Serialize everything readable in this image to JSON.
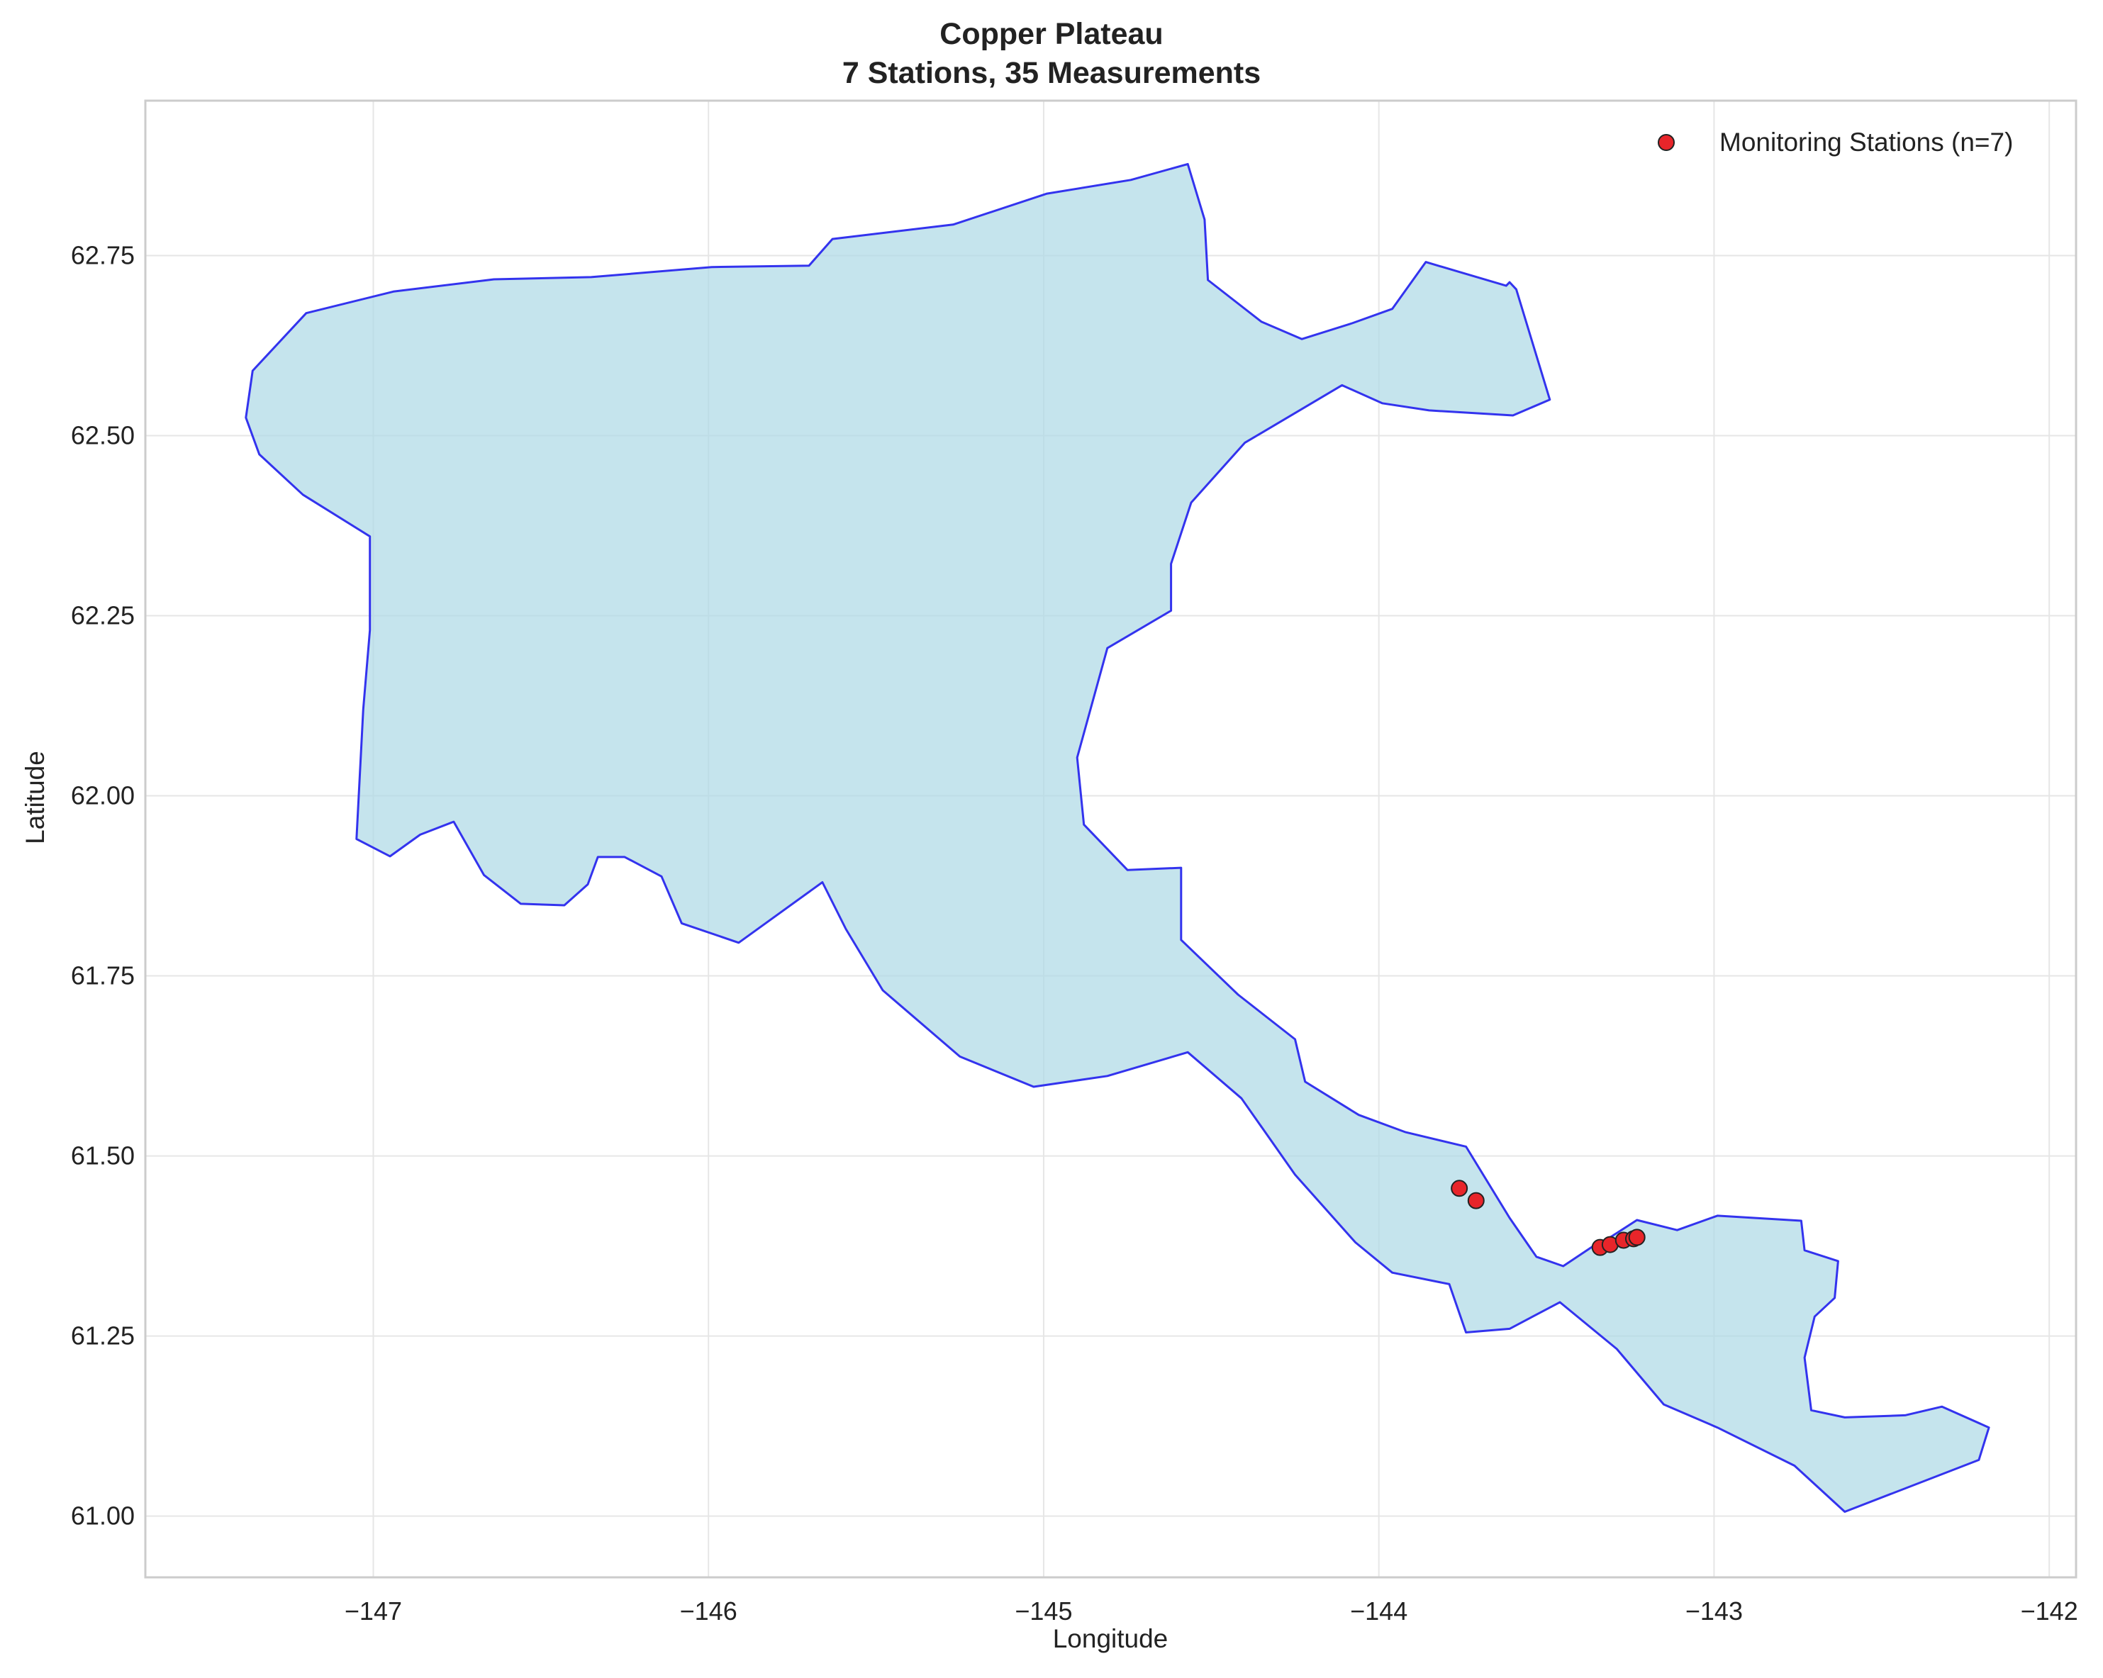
{
  "title": "Copper Plateau",
  "subtitle": "7 Stations, 35 Measurements",
  "xlabel": "Longitude",
  "ylabel": "Latitude",
  "legend": {
    "label": "Monitoring Stations (n=7)",
    "placement": "top-right"
  },
  "colors": {
    "region_fill": "#add8e6",
    "region_edge": "#3333ee",
    "station_fill": "#e8252a",
    "station_edge": "#222222",
    "frame": "#cccccc",
    "grid": "#e6e6e6"
  },
  "chart_data": {
    "type": "scatter",
    "xlim": [
      -147.68,
      -141.92
    ],
    "ylim": [
      60.915,
      62.965
    ],
    "x_ticks": [
      -147,
      -146,
      -145,
      -144,
      -143,
      -142
    ],
    "y_ticks": [
      61.0,
      61.25,
      61.5,
      61.75,
      62.0,
      62.25,
      62.5,
      62.75
    ],
    "x_tick_labels": [
      "−147",
      "−146",
      "−145",
      "−144",
      "−143",
      "−142"
    ],
    "y_tick_labels": [
      "61.00",
      "61.25",
      "61.50",
      "61.75",
      "62.00",
      "62.25",
      "62.50",
      "62.75"
    ],
    "grid": true,
    "stations": [
      {
        "lon": -143.76,
        "lat": 61.455
      },
      {
        "lon": -143.71,
        "lat": 61.438
      },
      {
        "lon": -143.34,
        "lat": 61.373
      },
      {
        "lon": -143.31,
        "lat": 61.377
      },
      {
        "lon": -143.27,
        "lat": 61.383
      },
      {
        "lon": -143.24,
        "lat": 61.385
      },
      {
        "lon": -143.23,
        "lat": 61.387
      }
    ],
    "region_outline": [
      [
        -147.38,
        62.525
      ],
      [
        -147.36,
        62.59
      ],
      [
        -147.2,
        62.67
      ],
      [
        -146.94,
        62.7
      ],
      [
        -146.64,
        62.717
      ],
      [
        -146.35,
        62.72
      ],
      [
        -145.99,
        62.734
      ],
      [
        -145.7,
        62.736
      ],
      [
        -145.63,
        62.773
      ],
      [
        -145.27,
        62.793
      ],
      [
        -144.99,
        62.836
      ],
      [
        -144.74,
        62.855
      ],
      [
        -144.57,
        62.877
      ],
      [
        -144.52,
        62.8
      ],
      [
        -144.51,
        62.716
      ],
      [
        -144.35,
        62.658
      ],
      [
        -144.23,
        62.634
      ],
      [
        -144.08,
        62.656
      ],
      [
        -143.96,
        62.676
      ],
      [
        -143.86,
        62.741
      ],
      [
        -143.62,
        62.708
      ],
      [
        -143.61,
        62.713
      ],
      [
        -143.59,
        62.703
      ],
      [
        -143.49,
        62.55
      ],
      [
        -143.6,
        62.528
      ],
      [
        -143.85,
        62.535
      ],
      [
        -143.99,
        62.545
      ],
      [
        -144.11,
        62.57
      ],
      [
        -144.4,
        62.49
      ],
      [
        -144.56,
        62.407
      ],
      [
        -144.62,
        62.322
      ],
      [
        -144.62,
        62.257
      ],
      [
        -144.81,
        62.205
      ],
      [
        -144.9,
        62.053
      ],
      [
        -144.88,
        61.96
      ],
      [
        -144.75,
        61.897
      ],
      [
        -144.59,
        61.9
      ],
      [
        -144.59,
        61.8
      ],
      [
        -144.42,
        61.724
      ],
      [
        -144.25,
        61.662
      ],
      [
        -144.22,
        61.603
      ],
      [
        -144.06,
        61.557
      ],
      [
        -143.92,
        61.533
      ],
      [
        -143.74,
        61.513
      ],
      [
        -143.61,
        61.414
      ],
      [
        -143.53,
        61.36
      ],
      [
        -143.45,
        61.347
      ],
      [
        -143.36,
        61.375
      ],
      [
        -143.31,
        61.387
      ],
      [
        -143.23,
        61.411
      ],
      [
        -143.11,
        61.397
      ],
      [
        -142.99,
        61.417
      ],
      [
        -142.74,
        61.41
      ],
      [
        -142.73,
        61.369
      ],
      [
        -142.63,
        61.354
      ],
      [
        -142.64,
        61.303
      ],
      [
        -142.7,
        61.277
      ],
      [
        -142.73,
        61.22
      ],
      [
        -142.71,
        61.147
      ],
      [
        -142.61,
        61.137
      ],
      [
        -142.43,
        61.14
      ],
      [
        -142.32,
        61.152
      ],
      [
        -142.18,
        61.123
      ],
      [
        -142.21,
        61.078
      ],
      [
        -142.61,
        61.006
      ],
      [
        -142.76,
        61.07
      ],
      [
        -142.99,
        61.123
      ],
      [
        -143.15,
        61.155
      ],
      [
        -143.29,
        61.232
      ],
      [
        -143.46,
        61.297
      ],
      [
        -143.61,
        61.26
      ],
      [
        -143.74,
        61.255
      ],
      [
        -143.79,
        61.322
      ],
      [
        -143.96,
        61.338
      ],
      [
        -144.07,
        61.38
      ],
      [
        -144.25,
        61.474
      ],
      [
        -144.41,
        61.58
      ],
      [
        -144.57,
        61.644
      ],
      [
        -144.81,
        61.611
      ],
      [
        -145.03,
        61.596
      ],
      [
        -145.25,
        61.638
      ],
      [
        -145.48,
        61.73
      ],
      [
        -145.59,
        61.815
      ],
      [
        -145.66,
        61.88
      ],
      [
        -145.91,
        61.796
      ],
      [
        -146.08,
        61.823
      ],
      [
        -146.14,
        61.888
      ],
      [
        -146.25,
        61.915
      ],
      [
        -146.33,
        61.915
      ],
      [
        -146.36,
        61.877
      ],
      [
        -146.43,
        61.848
      ],
      [
        -146.56,
        61.85
      ],
      [
        -146.67,
        61.89
      ],
      [
        -146.76,
        61.964
      ],
      [
        -146.86,
        61.946
      ],
      [
        -146.95,
        61.916
      ],
      [
        -147.05,
        61.94
      ],
      [
        -147.03,
        62.12
      ],
      [
        -147.01,
        62.23
      ],
      [
        -147.01,
        62.36
      ],
      [
        -147.21,
        62.418
      ],
      [
        -147.34,
        62.474
      ]
    ]
  }
}
